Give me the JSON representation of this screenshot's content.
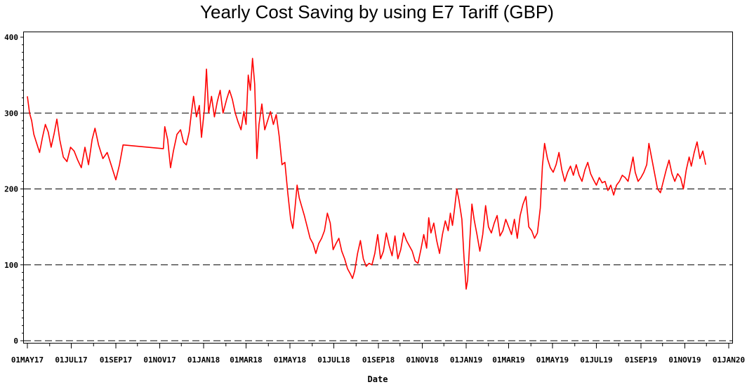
{
  "chart_data": {
    "type": "line",
    "title": "Yearly Cost Saving by using E7 Tariff (GBP)",
    "xlabel": "Date",
    "ylabel": "",
    "ylim": [
      0,
      400
    ],
    "yticks": [
      0,
      100,
      200,
      300,
      400
    ],
    "reference_lines": [
      0,
      100,
      200,
      300
    ],
    "x_start": "2017-05-01",
    "x_end": "2020-01-01",
    "xtick_labels": [
      "01MAY17",
      "01JUL17",
      "01SEP17",
      "01NOV17",
      "01JAN18",
      "01MAR18",
      "01MAY18",
      "01JUL18",
      "01SEP18",
      "01NOV18",
      "01JAN19",
      "01MAR19",
      "01MAY19",
      "01JUL19",
      "01SEP19",
      "01NOV19",
      "01JAN20"
    ],
    "line_color": "#ff0000",
    "series": [
      {
        "name": "Yearly Cost Saving",
        "points": [
          [
            "2017-05-01",
            322
          ],
          [
            "2017-05-04",
            300
          ],
          [
            "2017-05-07",
            290
          ],
          [
            "2017-05-10",
            272
          ],
          [
            "2017-05-14",
            260
          ],
          [
            "2017-05-18",
            248
          ],
          [
            "2017-05-22",
            268
          ],
          [
            "2017-05-26",
            285
          ],
          [
            "2017-05-30",
            275
          ],
          [
            "2017-06-03",
            255
          ],
          [
            "2017-06-07",
            272
          ],
          [
            "2017-06-11",
            292
          ],
          [
            "2017-06-15",
            265
          ],
          [
            "2017-06-20",
            242
          ],
          [
            "2017-06-25",
            236
          ],
          [
            "2017-06-30",
            255
          ],
          [
            "2017-07-05",
            250
          ],
          [
            "2017-07-10",
            238
          ],
          [
            "2017-07-15",
            228
          ],
          [
            "2017-07-20",
            255
          ],
          [
            "2017-07-25",
            232
          ],
          [
            "2017-07-30",
            265
          ],
          [
            "2017-08-03",
            280
          ],
          [
            "2017-08-08",
            258
          ],
          [
            "2017-08-14",
            240
          ],
          [
            "2017-08-20",
            248
          ],
          [
            "2017-08-26",
            230
          ],
          [
            "2017-09-01",
            212
          ],
          [
            "2017-09-06",
            232
          ],
          [
            "2017-09-11",
            258
          ],
          [
            "2017-11-06",
            253
          ],
          [
            "2017-11-08",
            282
          ],
          [
            "2017-11-12",
            265
          ],
          [
            "2017-11-16",
            228
          ],
          [
            "2017-11-20",
            250
          ],
          [
            "2017-11-25",
            272
          ],
          [
            "2017-11-30",
            278
          ],
          [
            "2017-12-04",
            262
          ],
          [
            "2017-12-08",
            258
          ],
          [
            "2017-12-12",
            275
          ],
          [
            "2017-12-15",
            300
          ],
          [
            "2017-12-18",
            322
          ],
          [
            "2017-12-22",
            295
          ],
          [
            "2017-12-26",
            310
          ],
          [
            "2017-12-29",
            268
          ],
          [
            "2018-01-02",
            305
          ],
          [
            "2018-01-05",
            358
          ],
          [
            "2018-01-08",
            300
          ],
          [
            "2018-01-12",
            322
          ],
          [
            "2018-01-16",
            295
          ],
          [
            "2018-01-20",
            315
          ],
          [
            "2018-01-24",
            330
          ],
          [
            "2018-01-28",
            300
          ],
          [
            "2018-02-02",
            318
          ],
          [
            "2018-02-06",
            330
          ],
          [
            "2018-02-10",
            318
          ],
          [
            "2018-02-14",
            300
          ],
          [
            "2018-02-18",
            288
          ],
          [
            "2018-02-22",
            278
          ],
          [
            "2018-02-26",
            302
          ],
          [
            "2018-03-01",
            285
          ],
          [
            "2018-03-04",
            350
          ],
          [
            "2018-03-07",
            330
          ],
          [
            "2018-03-10",
            372
          ],
          [
            "2018-03-13",
            338
          ],
          [
            "2018-03-16",
            240
          ],
          [
            "2018-03-19",
            285
          ],
          [
            "2018-03-23",
            312
          ],
          [
            "2018-03-27",
            278
          ],
          [
            "2018-03-31",
            290
          ],
          [
            "2018-04-04",
            302
          ],
          [
            "2018-04-08",
            285
          ],
          [
            "2018-04-12",
            298
          ],
          [
            "2018-04-16",
            270
          ],
          [
            "2018-04-20",
            232
          ],
          [
            "2018-04-24",
            235
          ],
          [
            "2018-04-28",
            195
          ],
          [
            "2018-05-02",
            160
          ],
          [
            "2018-05-05",
            148
          ],
          [
            "2018-05-08",
            175
          ],
          [
            "2018-05-11",
            205
          ],
          [
            "2018-05-14",
            188
          ],
          [
            "2018-05-17",
            178
          ],
          [
            "2018-05-21",
            165
          ],
          [
            "2018-05-25",
            150
          ],
          [
            "2018-05-29",
            135
          ],
          [
            "2018-06-02",
            128
          ],
          [
            "2018-06-06",
            115
          ],
          [
            "2018-06-10",
            128
          ],
          [
            "2018-06-14",
            135
          ],
          [
            "2018-06-18",
            145
          ],
          [
            "2018-06-22",
            168
          ],
          [
            "2018-06-26",
            155
          ],
          [
            "2018-06-30",
            120
          ],
          [
            "2018-07-04",
            128
          ],
          [
            "2018-07-08",
            135
          ],
          [
            "2018-07-12",
            118
          ],
          [
            "2018-07-16",
            108
          ],
          [
            "2018-07-20",
            95
          ],
          [
            "2018-07-24",
            88
          ],
          [
            "2018-07-27",
            82
          ],
          [
            "2018-07-30",
            92
          ],
          [
            "2018-08-03",
            115
          ],
          [
            "2018-08-07",
            132
          ],
          [
            "2018-08-11",
            108
          ],
          [
            "2018-08-15",
            98
          ],
          [
            "2018-08-19",
            102
          ],
          [
            "2018-08-23",
            100
          ],
          [
            "2018-08-27",
            115
          ],
          [
            "2018-08-31",
            140
          ],
          [
            "2018-09-04",
            108
          ],
          [
            "2018-09-08",
            118
          ],
          [
            "2018-09-12",
            142
          ],
          [
            "2018-09-16",
            125
          ],
          [
            "2018-09-20",
            112
          ],
          [
            "2018-09-24",
            138
          ],
          [
            "2018-09-28",
            108
          ],
          [
            "2018-10-02",
            120
          ],
          [
            "2018-10-06",
            142
          ],
          [
            "2018-10-10",
            132
          ],
          [
            "2018-10-14",
            125
          ],
          [
            "2018-10-18",
            118
          ],
          [
            "2018-10-22",
            105
          ],
          [
            "2018-10-26",
            102
          ],
          [
            "2018-10-30",
            120
          ],
          [
            "2018-11-03",
            140
          ],
          [
            "2018-11-07",
            122
          ],
          [
            "2018-11-10",
            162
          ],
          [
            "2018-11-13",
            142
          ],
          [
            "2018-11-17",
            155
          ],
          [
            "2018-11-21",
            132
          ],
          [
            "2018-11-25",
            115
          ],
          [
            "2018-11-29",
            140
          ],
          [
            "2018-12-03",
            158
          ],
          [
            "2018-12-07",
            145
          ],
          [
            "2018-12-10",
            168
          ],
          [
            "2018-12-13",
            152
          ],
          [
            "2018-12-16",
            175
          ],
          [
            "2018-12-19",
            200
          ],
          [
            "2018-12-22",
            185
          ],
          [
            "2018-12-26",
            160
          ],
          [
            "2018-12-29",
            110
          ],
          [
            "2019-01-01",
            68
          ],
          [
            "2019-01-03",
            80
          ],
          [
            "2019-01-06",
            130
          ],
          [
            "2019-01-09",
            180
          ],
          [
            "2019-01-12",
            160
          ],
          [
            "2019-01-16",
            140
          ],
          [
            "2019-01-20",
            118
          ],
          [
            "2019-01-24",
            140
          ],
          [
            "2019-01-28",
            178
          ],
          [
            "2019-02-01",
            150
          ],
          [
            "2019-02-05",
            142
          ],
          [
            "2019-02-09",
            155
          ],
          [
            "2019-02-13",
            165
          ],
          [
            "2019-02-17",
            138
          ],
          [
            "2019-02-21",
            145
          ],
          [
            "2019-02-25",
            160
          ],
          [
            "2019-03-01",
            150
          ],
          [
            "2019-03-05",
            140
          ],
          [
            "2019-03-09",
            160
          ],
          [
            "2019-03-13",
            135
          ],
          [
            "2019-03-17",
            165
          ],
          [
            "2019-03-21",
            180
          ],
          [
            "2019-03-25",
            190
          ],
          [
            "2019-03-29",
            150
          ],
          [
            "2019-04-02",
            145
          ],
          [
            "2019-04-06",
            135
          ],
          [
            "2019-04-10",
            142
          ],
          [
            "2019-04-14",
            175
          ],
          [
            "2019-04-17",
            230
          ],
          [
            "2019-04-20",
            260
          ],
          [
            "2019-04-24",
            240
          ],
          [
            "2019-04-28",
            228
          ],
          [
            "2019-05-02",
            222
          ],
          [
            "2019-05-06",
            232
          ],
          [
            "2019-05-10",
            248
          ],
          [
            "2019-05-14",
            225
          ],
          [
            "2019-05-18",
            210
          ],
          [
            "2019-05-22",
            222
          ],
          [
            "2019-05-26",
            230
          ],
          [
            "2019-05-30",
            218
          ],
          [
            "2019-06-03",
            232
          ],
          [
            "2019-06-07",
            218
          ],
          [
            "2019-06-11",
            210
          ],
          [
            "2019-06-15",
            225
          ],
          [
            "2019-06-19",
            235
          ],
          [
            "2019-06-23",
            220
          ],
          [
            "2019-06-27",
            212
          ],
          [
            "2019-07-01",
            205
          ],
          [
            "2019-07-05",
            215
          ],
          [
            "2019-07-09",
            208
          ],
          [
            "2019-07-13",
            210
          ],
          [
            "2019-07-17",
            198
          ],
          [
            "2019-07-21",
            205
          ],
          [
            "2019-07-25",
            192
          ],
          [
            "2019-07-29",
            205
          ],
          [
            "2019-08-02",
            210
          ],
          [
            "2019-08-06",
            218
          ],
          [
            "2019-08-10",
            215
          ],
          [
            "2019-08-14",
            210
          ],
          [
            "2019-08-18",
            228
          ],
          [
            "2019-08-21",
            242
          ],
          [
            "2019-08-24",
            222
          ],
          [
            "2019-08-28",
            210
          ],
          [
            "2019-09-01",
            215
          ],
          [
            "2019-09-05",
            222
          ],
          [
            "2019-09-09",
            232
          ],
          [
            "2019-09-12",
            260
          ],
          [
            "2019-09-16",
            240
          ],
          [
            "2019-09-20",
            220
          ],
          [
            "2019-09-24",
            200
          ],
          [
            "2019-09-28",
            195
          ],
          [
            "2019-10-02",
            210
          ],
          [
            "2019-10-06",
            225
          ],
          [
            "2019-10-10",
            238
          ],
          [
            "2019-10-14",
            220
          ],
          [
            "2019-10-18",
            210
          ],
          [
            "2019-10-22",
            220
          ],
          [
            "2019-10-26",
            215
          ],
          [
            "2019-10-30",
            200
          ],
          [
            "2019-11-03",
            225
          ],
          [
            "2019-11-07",
            242
          ],
          [
            "2019-11-10",
            230
          ],
          [
            "2019-11-14",
            248
          ],
          [
            "2019-11-18",
            262
          ],
          [
            "2019-11-22",
            240
          ],
          [
            "2019-11-26",
            250
          ],
          [
            "2019-11-30",
            232
          ]
        ]
      }
    ]
  }
}
